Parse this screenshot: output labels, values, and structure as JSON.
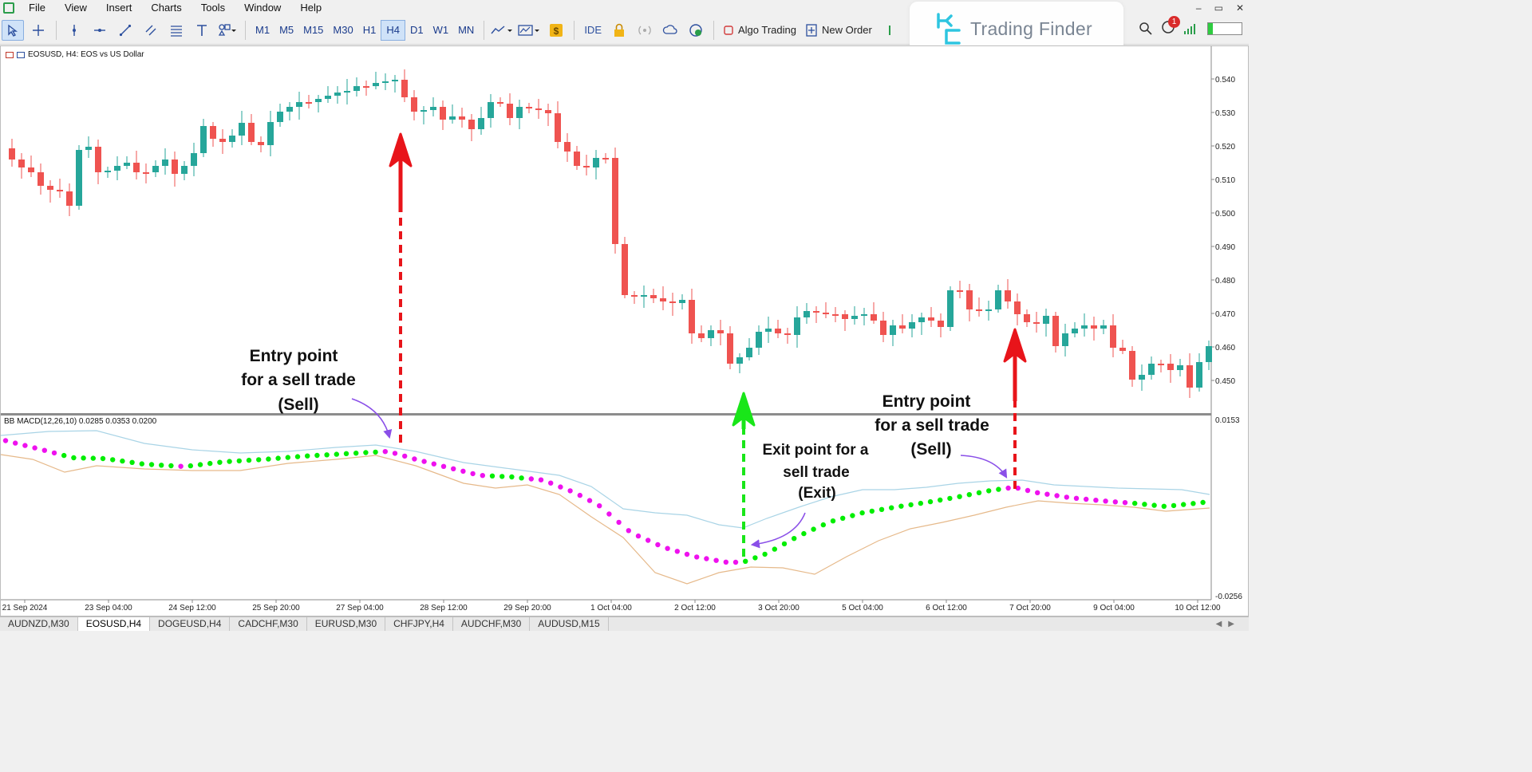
{
  "menu": {
    "items": [
      "File",
      "View",
      "Insert",
      "Charts",
      "Tools",
      "Window",
      "Help"
    ]
  },
  "window_controls": [
    "–",
    "▭",
    "✕"
  ],
  "toolbar": {
    "timeframes": [
      "M1",
      "M5",
      "M15",
      "M30",
      "H1",
      "H4",
      "D1",
      "W1",
      "MN"
    ],
    "active_timeframe": "H4",
    "ide_label": "IDE",
    "algo_trading_label": "Algo Trading",
    "new_order_label": "New Order",
    "notification_count": "1"
  },
  "logo": {
    "text": "Trading Finder"
  },
  "chart": {
    "symbol_label": "EOSUSD, H4:  EOS vs US Dollar",
    "indicator_label": "BB MACD(12,26,10) 0.0285 0.0353 0.0200",
    "price_ticks": [
      "0.540",
      "0.530",
      "0.520",
      "0.510",
      "0.500",
      "0.490",
      "0.480",
      "0.470",
      "0.460",
      "0.450"
    ],
    "indicator_ticks": [
      "0.0153",
      "-0.0256"
    ],
    "time_labels": [
      "21 Sep 2024",
      "23 Sep 04:00",
      "24 Sep 12:00",
      "25 Sep 20:00",
      "27 Sep 04:00",
      "28 Sep 12:00",
      "29 Sep 20:00",
      "1 Oct 04:00",
      "2 Oct 12:00",
      "3 Oct 20:00",
      "5 Oct 04:00",
      "6 Oct 12:00",
      "7 Oct 20:00",
      "9 Oct 04:00",
      "10 Oct 12:00"
    ],
    "colors": {
      "bull": "#26a69a",
      "bear": "#ef5350",
      "dot_up": "#00ee00",
      "dot_down": "#ee11ee",
      "upper_band": "#a9d4e6",
      "lower_band": "#e6b98a"
    }
  },
  "annotations": [
    {
      "lines": [
        "Entry point",
        "for a sell trade",
        "(Sell)"
      ]
    },
    {
      "lines": [
        "Exit point for a",
        "sell trade",
        "(Exit)"
      ]
    },
    {
      "lines": [
        "Entry point",
        "for a sell trade",
        "(Sell)"
      ]
    }
  ],
  "tabs": [
    "AUDNZD,M30",
    "EOSUSD,H4",
    "DOGEUSD,H4",
    "CADCHF,M30",
    "EURUSD,M30",
    "CHFJPY,H4",
    "AUDCHF,M30",
    "AUDUSD,M15"
  ],
  "active_tab": "EOSUSD,H4"
}
